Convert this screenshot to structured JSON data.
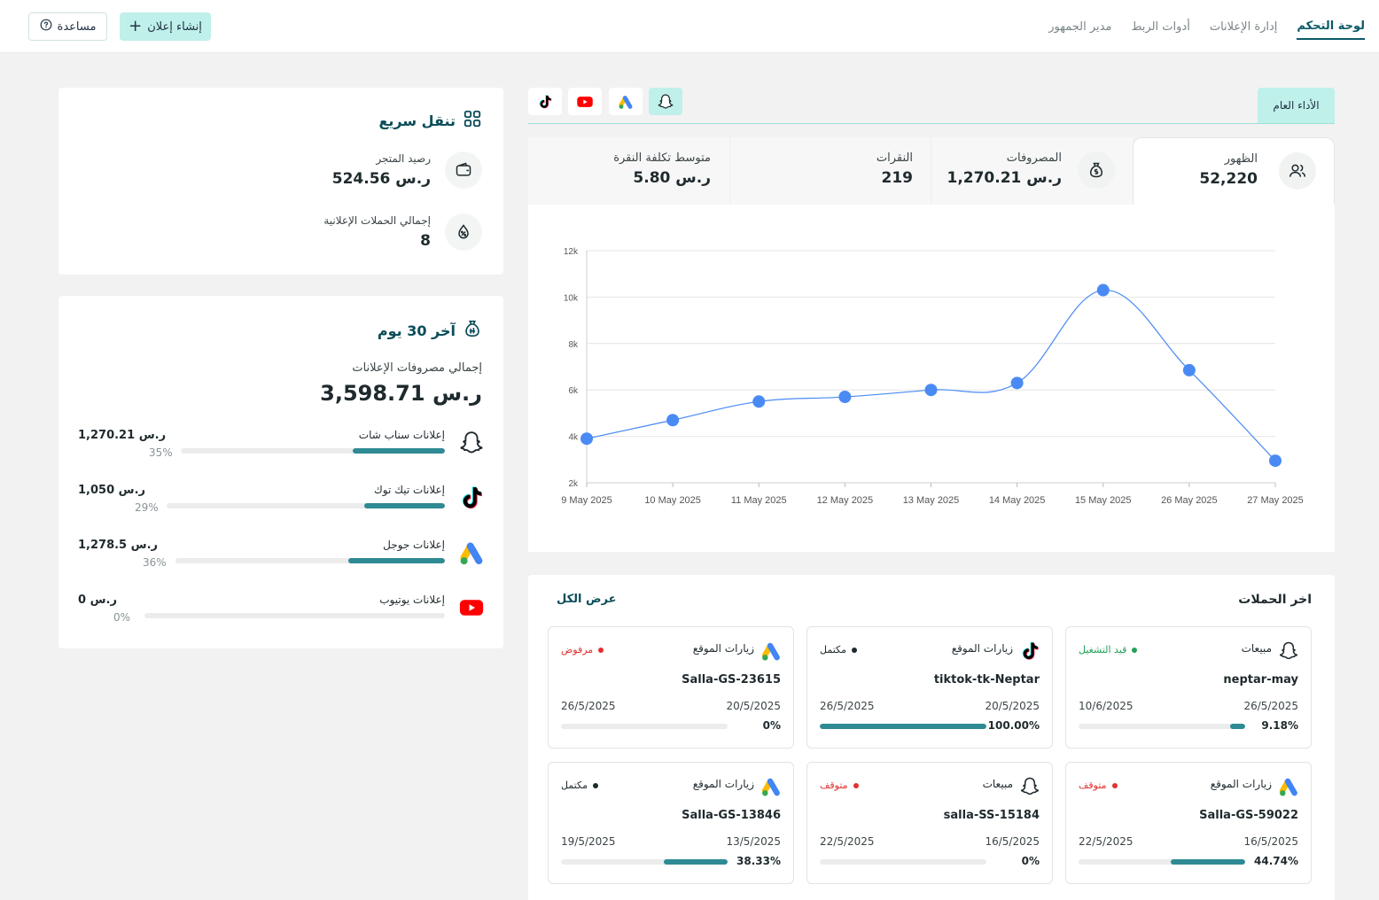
{
  "nav": {
    "items": [
      {
        "label": "لوحة التحكم",
        "active": true
      },
      {
        "label": "إدارة الإعلانات",
        "active": false
      },
      {
        "label": "أدوات الربط",
        "active": false
      },
      {
        "label": "مدير الجمهور",
        "active": false
      }
    ],
    "create_label": "إنشاء إعلان",
    "help_label": "مساعدة"
  },
  "quick_nav": {
    "title": "تنقل سريع",
    "balance_label": "رصيد المتجر",
    "balance_value": "524.56 ر.س",
    "campaigns_label": "إجمالي الحملات الإعلانية",
    "campaigns_value": "8"
  },
  "last30": {
    "title": "آخر 30 يوم",
    "total_label": "إجمالي مصروفات الإعلانات",
    "total_value": "3,598.71 ر.س",
    "platforms": [
      {
        "name": "إعلانات سناب شات",
        "amount": "1,270.21 ر.س",
        "pct": "35%",
        "fraction": 0.35,
        "icon": "snapchat-icon"
      },
      {
        "name": "إعلانات تيك توك",
        "amount": "1,050 ر.س",
        "pct": "29%",
        "fraction": 0.29,
        "icon": "tiktok-icon"
      },
      {
        "name": "إعلانات جوجل",
        "amount": "1,278.5 ر.س",
        "pct": "36%",
        "fraction": 0.36,
        "icon": "google-ads-icon"
      },
      {
        "name": "إعلانات يوتيوب",
        "amount": "0 ر.س",
        "pct": "0%",
        "fraction": 0,
        "icon": "youtube-icon"
      }
    ]
  },
  "performance": {
    "tab_label": "الأداء العام",
    "platform_tabs": [
      "snapchat-icon",
      "google-ads-icon",
      "youtube-icon",
      "tiktok-icon"
    ],
    "selected_platform": "snapchat-icon",
    "metrics": [
      {
        "label": "الظهور",
        "value": "52,220",
        "icon": "users-icon",
        "active": true
      },
      {
        "label": "المصروفات",
        "value": "1,270.21 ر.س",
        "icon": "money-bag-icon",
        "active": false
      },
      {
        "label": "النقرات",
        "value": "219",
        "active": false
      },
      {
        "label": "متوسط تكلفة النقرة",
        "value": "5.80 ر.س",
        "active": false
      }
    ]
  },
  "chart_data": {
    "type": "line",
    "categories": [
      "9 May 2025",
      "10 May 2025",
      "11 May 2025",
      "12 May 2025",
      "13 May 2025",
      "14 May 2025",
      "15 May 2025",
      "26 May 2025",
      "27 May 2025"
    ],
    "values": [
      3900,
      4700,
      5500,
      5700,
      6000,
      6300,
      10300,
      6850,
      2950
    ],
    "y_ticks": [
      "2k",
      "4k",
      "6k",
      "8k",
      "10k",
      "12k"
    ],
    "ylim": [
      2000,
      12000
    ],
    "grid": true,
    "color": "#4a8af4"
  },
  "campaigns": {
    "title": "اخر الحملات",
    "view_all": "عرض الكل",
    "items": [
      {
        "type": "مبيعات",
        "icon": "snapchat-icon",
        "status": "قيد التشغيل",
        "status_color": "#22a05a",
        "name": "neptar-may",
        "start": "26/5/2025",
        "end": "10/6/2025",
        "pct": "9.18%",
        "fraction": 0.0918
      },
      {
        "type": "زيارات الموقع",
        "icon": "tiktok-icon",
        "status": "مكتمل",
        "status_color": "#1f2a2e",
        "name": "tiktok-tk-Neptar",
        "start": "20/5/2025",
        "end": "26/5/2025",
        "pct": "100.00%",
        "fraction": 1.0
      },
      {
        "type": "زيارات الموقع",
        "icon": "google-ads-icon",
        "status": "مرفوض",
        "status_color": "#e03131",
        "name": "Salla-GS-23615",
        "start": "20/5/2025",
        "end": "26/5/2025",
        "pct": "0%",
        "fraction": 0
      },
      {
        "type": "زيارات الموقع",
        "icon": "google-ads-icon",
        "status": "متوقف",
        "status_color": "#e03131",
        "name": "Salla-GS-59022",
        "start": "16/5/2025",
        "end": "22/5/2025",
        "pct": "44.74%",
        "fraction": 0.4474
      },
      {
        "type": "مبيعات",
        "icon": "snapchat-icon",
        "status": "متوقف",
        "status_color": "#e03131",
        "name": "salla-SS-15184",
        "start": "16/5/2025",
        "end": "22/5/2025",
        "pct": "0%",
        "fraction": 0
      },
      {
        "type": "زيارات الموقع",
        "icon": "google-ads-icon",
        "status": "مكتمل",
        "status_color": "#1f2a2e",
        "name": "Salla-GS-13846",
        "start": "13/5/2025",
        "end": "19/5/2025",
        "pct": "38.33%",
        "fraction": 0.3833
      }
    ]
  }
}
